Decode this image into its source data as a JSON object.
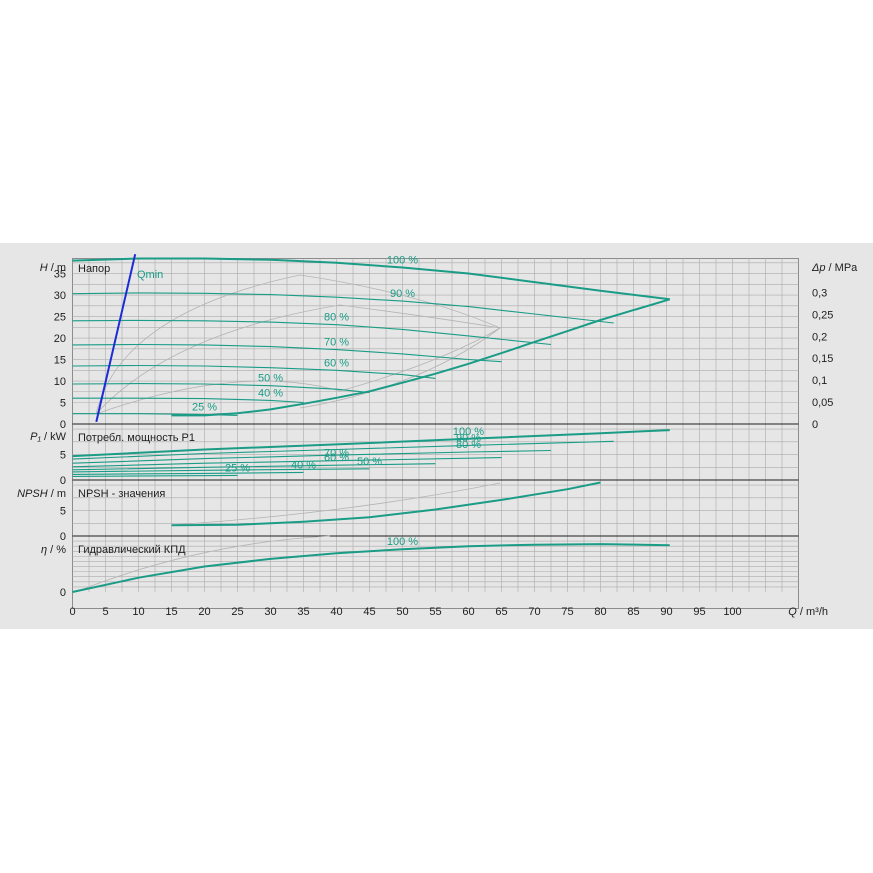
{
  "colors": {
    "background": "#e6e6e6",
    "grid": "#ababab",
    "curve": "#1a9c86",
    "qmin_line": "#1c2bd6",
    "efficiency_aux": "#b4b4b4"
  },
  "axis_units": {
    "q": [
      "Q",
      " / m³/h"
    ],
    "head": [
      "H",
      " / m"
    ],
    "power": [
      "P₁",
      " / kW"
    ],
    "npsh": [
      "NPSH",
      " / m"
    ],
    "eta": [
      "η",
      " / %"
    ],
    "dp": [
      "Δp",
      " / MPa"
    ]
  },
  "panel_titles": {
    "head": "Напор",
    "power": "Потребл. мощность P1",
    "npsh": "NPSH - значения",
    "eta": "Гидравлический КПД"
  },
  "qmin_label": "Qmin",
  "chart_data": [
    {
      "type": "line",
      "panel": "head",
      "title": "Напор",
      "xlabel": "Q / m³/h",
      "ylabel": "H / m",
      "y2label": "Δp / MPa",
      "xlim": [
        0,
        110
      ],
      "ylim": [
        0,
        38.5
      ],
      "x_ticks": [
        0,
        5,
        10,
        15,
        20,
        25,
        30,
        35,
        40,
        45,
        50,
        55,
        60,
        65,
        70,
        75,
        80,
        85,
        90,
        95,
        100
      ],
      "y_ticks": [
        0,
        5,
        10,
        15,
        20,
        25,
        30,
        35
      ],
      "y2_ticks": [
        "0",
        "0,05",
        "0,1",
        "0,15",
        "0,2",
        "0,25",
        "0,3"
      ],
      "grid": true,
      "series": [
        {
          "name": "100 %",
          "x": [
            0,
            10,
            20,
            30,
            40,
            50,
            60,
            70,
            80,
            90.5
          ],
          "y": [
            38,
            38.5,
            38.5,
            38.2,
            37.5,
            36.4,
            35,
            33,
            31,
            29
          ]
        },
        {
          "name": "90 %",
          "x": [
            0,
            10,
            20,
            30,
            40,
            50,
            60,
            70,
            82
          ],
          "y": [
            30.3,
            30.5,
            30.4,
            30.1,
            29.5,
            28.6,
            27.3,
            25.6,
            23.5
          ]
        },
        {
          "name": "80 %",
          "x": [
            0,
            10,
            20,
            30,
            40,
            50,
            60,
            72.5
          ],
          "y": [
            24,
            24.1,
            24,
            23.7,
            23.1,
            22,
            20.5,
            18.5
          ]
        },
        {
          "name": "70 %",
          "x": [
            0,
            10,
            20,
            30,
            40,
            50,
            60,
            65
          ],
          "y": [
            18.4,
            18.5,
            18.4,
            18,
            17.3,
            16.3,
            15,
            14.5
          ]
        },
        {
          "name": "60 %",
          "x": [
            0,
            10,
            20,
            30,
            40,
            50,
            55
          ],
          "y": [
            13.5,
            13.6,
            13.5,
            13.1,
            12.5,
            11.5,
            10.6
          ]
        },
        {
          "name": "50 %",
          "x": [
            0,
            10,
            20,
            30,
            40,
            45
          ],
          "y": [
            9.3,
            9.4,
            9.3,
            8.9,
            8.1,
            7.3
          ]
        },
        {
          "name": "40 %",
          "x": [
            0,
            10,
            20,
            30,
            35
          ],
          "y": [
            6,
            6,
            5.9,
            5.5,
            5
          ]
        },
        {
          "name": "25 %",
          "x": [
            0,
            10,
            20,
            25
          ],
          "y": [
            2.4,
            2.4,
            2.2,
            2
          ]
        },
        {
          "name": "",
          "x": [
            15,
            20,
            25,
            30,
            35,
            40,
            45,
            50,
            55,
            60,
            65,
            70,
            75,
            80,
            85,
            90.5
          ],
          "y": [
            2,
            2,
            2.5,
            3.4,
            4.7,
            6.1,
            7.6,
            9.6,
            11.7,
            14,
            16.5,
            19.1,
            21.6,
            24.2,
            26.5,
            29
          ]
        },
        {
          "name": "Qmin",
          "x": [
            3.6,
            9.5
          ],
          "y": [
            0.5,
            39.5
          ]
        }
      ]
    },
    {
      "type": "line",
      "panel": "power",
      "title": "Потребл. мощность P1",
      "ylabel": "P₁ / kW",
      "xlim": [
        0,
        110
      ],
      "ylim": [
        0,
        11
      ],
      "y_ticks": [
        0,
        5
      ],
      "series": [
        {
          "name": "100 %",
          "x": [
            0,
            20,
            40,
            60,
            80,
            90.5
          ],
          "y": [
            4.7,
            6,
            7,
            8.1,
            9.2,
            9.8
          ]
        },
        {
          "name": "90 %",
          "x": [
            0,
            20,
            40,
            60,
            82
          ],
          "y": [
            4.1,
            5.2,
            6,
            6.8,
            7.6
          ]
        },
        {
          "name": "80 %",
          "x": [
            0,
            20,
            40,
            60,
            72.5
          ],
          "y": [
            3.3,
            4.2,
            4.9,
            5.5,
            5.8
          ]
        },
        {
          "name": "70 %",
          "x": [
            0,
            20,
            40,
            65
          ],
          "y": [
            2.6,
            3.3,
            3.8,
            4.4
          ]
        },
        {
          "name": "60 %",
          "x": [
            0,
            20,
            40,
            55
          ],
          "y": [
            2,
            2.5,
            2.9,
            3.2
          ]
        },
        {
          "name": "50 %",
          "x": [
            0,
            20,
            45
          ],
          "y": [
            1.6,
            1.9,
            2.2
          ]
        },
        {
          "name": "40 %",
          "x": [
            0,
            20,
            35
          ],
          "y": [
            1.1,
            1.3,
            1.5
          ]
        },
        {
          "name": "25 %",
          "x": [
            0,
            25
          ],
          "y": [
            0.7,
            0.9
          ]
        }
      ]
    },
    {
      "type": "line",
      "panel": "npsh",
      "title": "NPSH - значения",
      "ylabel": "NPSH / m",
      "xlim": [
        0,
        110
      ],
      "ylim": [
        0,
        11
      ],
      "y_ticks": [
        0,
        5
      ],
      "series": [
        {
          "name": "",
          "x": [
            15,
            25,
            35,
            45,
            55,
            65,
            75,
            80
          ],
          "y": [
            2.1,
            2.2,
            2.8,
            3.7,
            5.2,
            7.1,
            9.2,
            10.5
          ]
        }
      ]
    },
    {
      "type": "line",
      "panel": "eta",
      "title": "Гидравлический КПД",
      "ylabel": "η / %",
      "xlim": [
        0,
        110
      ],
      "ylim": [
        0,
        110
      ],
      "y_ticks": [
        0
      ],
      "series": [
        {
          "name": "100 %",
          "x": [
            0,
            10,
            20,
            30,
            40,
            50,
            60,
            70,
            80,
            90.5
          ],
          "y": [
            0,
            28,
            50,
            65,
            76,
            84,
            90,
            93,
            94,
            92
          ]
        }
      ]
    }
  ]
}
